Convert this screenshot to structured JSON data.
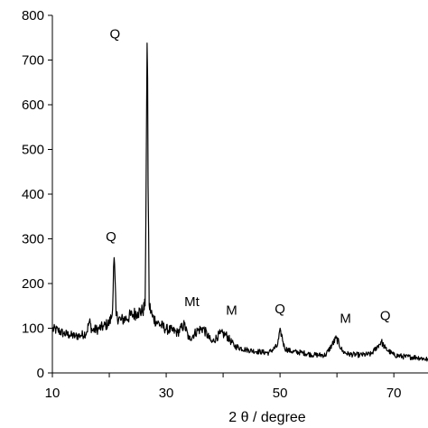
{
  "chart_data": {
    "type": "line",
    "xlabel": "2 θ / degree",
    "ylabel": "",
    "title": "",
    "xlim": [
      10,
      76
    ],
    "ylim": [
      0,
      800
    ],
    "x_ticks": [
      10,
      30,
      50,
      70
    ],
    "y_ticks": [
      0,
      100,
      200,
      300,
      400,
      500,
      600,
      700,
      800
    ],
    "grid": false,
    "line_color": "#000000",
    "series": [
      {
        "x": [
          10,
          11,
          12,
          13,
          14,
          15,
          16,
          16.5,
          17,
          18,
          19,
          20,
          20.5,
          20.85,
          21.2,
          22,
          23,
          24,
          25,
          25.8,
          26.3,
          26.65,
          27.0,
          27.6,
          28.5,
          30,
          31,
          32,
          33.2,
          34,
          35.5,
          36.5,
          38,
          39.5,
          40.5,
          42,
          44,
          46,
          48,
          49.5,
          50.1,
          50.8,
          52,
          54,
          56,
          58,
          59.9,
          61,
          62,
          64,
          66,
          67.8,
          68.5,
          70,
          72,
          74,
          76
        ],
        "y": [
          98,
          95,
          88,
          85,
          82,
          84,
          90,
          115,
          95,
          98,
          104,
          112,
          130,
          258,
          128,
          118,
          122,
          130,
          136,
          138,
          150,
          738,
          152,
          125,
          112,
          98,
          95,
          90,
          108,
          75,
          95,
          100,
          68,
          88,
          85,
          60,
          52,
          48,
          45,
          60,
          95,
          55,
          48,
          45,
          40,
          40,
          78,
          48,
          42,
          40,
          42,
          70,
          55,
          40,
          36,
          35,
          30
        ]
      }
    ],
    "annotations": [
      {
        "label": "Q",
        "x": 21,
        "y": 748
      },
      {
        "label": "Q",
        "x": 20.3,
        "y": 295
      },
      {
        "label": "Mt",
        "x": 34.5,
        "y": 150
      },
      {
        "label": "M",
        "x": 41.5,
        "y": 130
      },
      {
        "label": "Q",
        "x": 50,
        "y": 133
      },
      {
        "label": "M",
        "x": 61.5,
        "y": 112
      },
      {
        "label": "Q",
        "x": 68.5,
        "y": 118
      }
    ]
  }
}
